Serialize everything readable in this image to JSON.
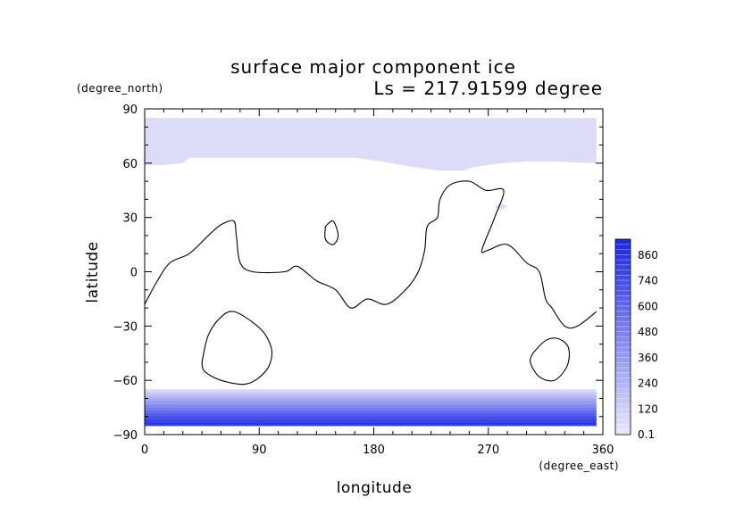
{
  "chart_data": {
    "type": "heatmap",
    "title": "surface major component ice",
    "subtitle": "Ls = 217.91599 degree",
    "xlabel": "longitude",
    "ylabel": "latitude",
    "x_unit": "(degree_east)",
    "y_unit": "(degree_north)",
    "xlim": [
      0,
      360
    ],
    "ylim": [
      -90,
      90
    ],
    "x_ticks": [
      "0",
      "90",
      "180",
      "270",
      "360"
    ],
    "y_ticks": [
      "90",
      "60",
      "30",
      "0",
      "−30",
      "−60",
      "−90"
    ],
    "x_tick_values": [
      0,
      90,
      180,
      270,
      360
    ],
    "y_tick_values": [
      90,
      60,
      30,
      0,
      -30,
      -60,
      -90
    ],
    "colorbar": {
      "labels": [
        "860",
        "740",
        "600",
        "480",
        "360",
        "240",
        "120",
        "0.1"
      ],
      "min": 0.1,
      "max": 1000,
      "low_color": "#e6e6fb",
      "high_color": "#1c28e6"
    },
    "north_cap": {
      "lat_bounds": [
        59,
        85
      ],
      "lon_bounds": [
        0,
        355
      ],
      "approx_value": 30,
      "color": "#dcdcf8"
    },
    "south_cap": {
      "lat_bounds": [
        -85,
        -65
      ],
      "lon_bounds": [
        0,
        355
      ],
      "values_top_to_bottom": [
        80,
        160,
        240,
        320,
        400,
        480,
        560,
        640,
        720,
        800,
        860,
        900
      ]
    },
    "contours": {
      "continent": [
        [
          0,
          -18
        ],
        [
          10,
          -5
        ],
        [
          20,
          5
        ],
        [
          35,
          10
        ],
        [
          50,
          20
        ],
        [
          60,
          26
        ],
        [
          70,
          28
        ],
        [
          72,
          20
        ],
        [
          75,
          5
        ],
        [
          85,
          0
        ],
        [
          110,
          0
        ],
        [
          120,
          3
        ],
        [
          135,
          -5
        ],
        [
          150,
          -10
        ],
        [
          162,
          -20
        ],
        [
          175,
          -15
        ],
        [
          190,
          -18
        ],
        [
          205,
          -10
        ],
        [
          215,
          0
        ],
        [
          220,
          12
        ],
        [
          222,
          25
        ],
        [
          230,
          30
        ],
        [
          232,
          40
        ],
        [
          240,
          48
        ],
        [
          255,
          50
        ],
        [
          268,
          45
        ],
        [
          282,
          45
        ],
        [
          275,
          30
        ],
        [
          265,
          12
        ],
        [
          270,
          12
        ],
        [
          285,
          15
        ],
        [
          300,
          5
        ],
        [
          310,
          0
        ],
        [
          315,
          -15
        ],
        [
          320,
          -20
        ],
        [
          330,
          -30
        ],
        [
          340,
          -30
        ],
        [
          355,
          -22
        ]
      ],
      "island": [
        [
          142,
          25
        ],
        [
          148,
          28
        ],
        [
          152,
          20
        ],
        [
          148,
          15
        ],
        [
          142,
          18
        ],
        [
          142,
          25
        ]
      ],
      "basin_a": [
        [
          45,
          -50
        ],
        [
          50,
          -35
        ],
        [
          60,
          -25
        ],
        [
          70,
          -22
        ],
        [
          85,
          -28
        ],
        [
          95,
          -35
        ],
        [
          100,
          -45
        ],
        [
          95,
          -55
        ],
        [
          80,
          -62
        ],
        [
          60,
          -60
        ],
        [
          47,
          -55
        ],
        [
          45,
          -50
        ]
      ],
      "basin_b": [
        [
          305,
          -45
        ],
        [
          315,
          -38
        ],
        [
          325,
          -37
        ],
        [
          333,
          -42
        ],
        [
          332,
          -52
        ],
        [
          322,
          -60
        ],
        [
          310,
          -58
        ],
        [
          303,
          -50
        ],
        [
          305,
          -45
        ]
      ],
      "small_ice_patch": [
        [
          275,
          36
        ],
        [
          280,
          38
        ],
        [
          285,
          36
        ],
        [
          280,
          34
        ],
        [
          275,
          36
        ]
      ]
    }
  }
}
